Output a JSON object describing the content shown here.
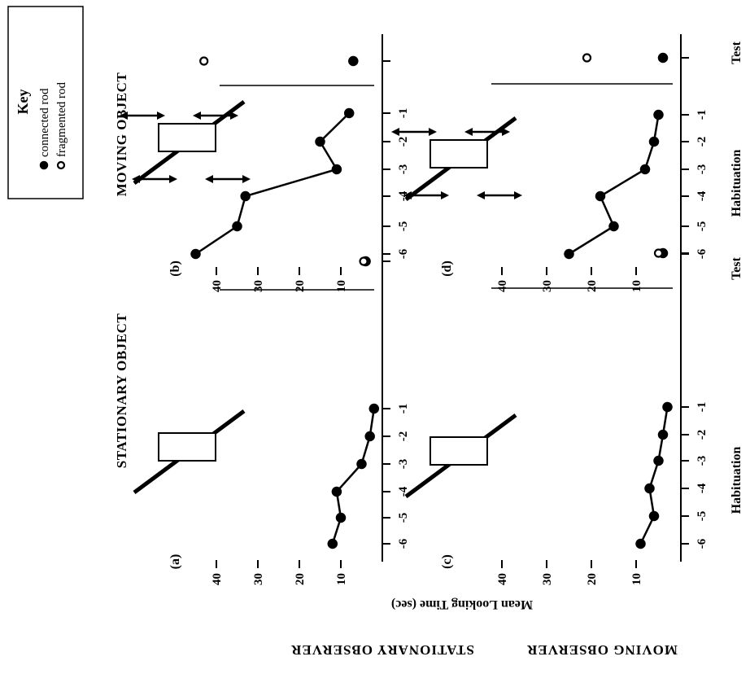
{
  "key": {
    "title": "Key",
    "entries": [
      {
        "label": "connected rod",
        "marker": "filled"
      },
      {
        "label": "fragmented rod",
        "marker": "open"
      }
    ]
  },
  "column_titles": [
    "STATIONARY OBJECT",
    "MOVING OBJECT"
  ],
  "row_titles": [
    "STATIONARY   OBSERVER",
    "MOVING OBSERVER"
  ],
  "y_axis_label": "Mean Looking Time (sec)",
  "x_axis_label_habituation": "Habituation",
  "x_axis_label_test": "Test",
  "chart_data": [
    {
      "type": "line",
      "panel": "(a)",
      "condition": "STATIONARY OBJECT",
      "observer": "STATIONARY   OBSERVER",
      "x": [
        "-6",
        "-5",
        "-4",
        "-3",
        "-2",
        "-1"
      ],
      "habituation": [
        12,
        10,
        11,
        5,
        3,
        2
      ],
      "test": {
        "x": "Test",
        "connected": 4,
        "fragmented": 4.5
      },
      "yticks": [
        10,
        20,
        30,
        40
      ],
      "ylim": [
        0,
        47
      ],
      "object_moving": false
    },
    {
      "type": "line",
      "panel": "(b)",
      "condition": "MOVING OBJECT",
      "observer": "STATIONARY   OBSERVER",
      "x": [
        "-6",
        "-5",
        "-4",
        "-3",
        "-2",
        "-1"
      ],
      "habituation": [
        45,
        35,
        33,
        11,
        15,
        8
      ],
      "test": {
        "x": "Test",
        "connected": 7,
        "fragmented": 43
      },
      "yticks": [
        10,
        20,
        30,
        40
      ],
      "ylim": [
        0,
        47
      ],
      "object_moving": true
    },
    {
      "type": "line",
      "panel": "(c)",
      "condition": "STATIONARY OBJECT",
      "observer": "MOVING OBSERVER",
      "x": [
        "-6",
        "-5",
        "-4",
        "-3",
        "-2",
        "-1"
      ],
      "habituation": [
        9,
        6,
        7,
        5,
        4,
        3
      ],
      "test": {
        "x": "Test",
        "connected": 4,
        "fragmented": 5
      },
      "yticks": [
        10,
        20,
        30,
        40
      ],
      "ylim": [
        0,
        47
      ],
      "object_moving": false
    },
    {
      "type": "line",
      "panel": "(d)",
      "condition": "MOVING OBJECT",
      "observer": "MOVING OBSERVER",
      "x": [
        "-6",
        "-5",
        "-4",
        "-3",
        "-2",
        "-1"
      ],
      "habituation": [
        25,
        15,
        18,
        8,
        6,
        5
      ],
      "test": {
        "x": "Test",
        "connected": 4,
        "fragmented": 21
      },
      "yticks": [
        10,
        20,
        30,
        40
      ],
      "ylim": [
        0,
        47
      ],
      "object_moving": true
    }
  ]
}
